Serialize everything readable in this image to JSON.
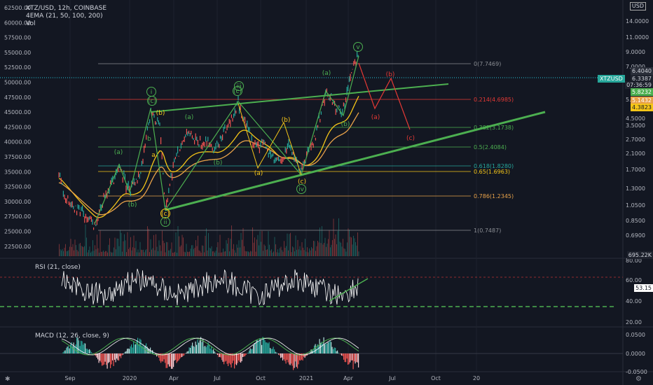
{
  "header": {
    "symbol_line": "XTZ/USD, 12h, COINBASE",
    "ema_line": "4EMA (21, 50, 100, 200)",
    "vol_label": "Vol"
  },
  "price_axis": {
    "left_ticks": [
      "62500.00",
      "60000.00",
      "57500.00",
      "55000.00",
      "52500.00",
      "50000.00",
      "47500.00",
      "45000.00",
      "42500.00",
      "40000.00",
      "37500.00",
      "35000.00",
      "32500.00",
      "30000.00",
      "27500.00",
      "25000.00",
      "22500.00"
    ],
    "right_ticks": [
      "14.0000",
      "11.0000",
      "9.0000",
      "7.0000",
      "5.5000",
      "4.5000",
      "3.5000",
      "2.7000",
      "2.1000",
      "1.7000",
      "1.3000",
      "1.0500",
      "0.8500",
      "0.6900"
    ],
    "usd_label": "USD"
  },
  "price_tags": [
    {
      "text": "6.4040",
      "color": "#2a2e39",
      "text_color": "#d1d4dc"
    },
    {
      "text": "6.3387",
      "color": "#1e222d",
      "text_color": "#d1d4dc"
    },
    {
      "text": "07:36:59",
      "color": "#1e222d",
      "text_color": "#d1d4dc"
    },
    {
      "text": "5.8232",
      "color": "#4caf50",
      "text_color": "#ffffff"
    },
    {
      "text": "5.1432",
      "color": "#e8a24a",
      "text_color": "#ffffff"
    },
    {
      "text": "4.3823",
      "color": "#f5c518",
      "text_color": "#131722"
    }
  ],
  "xtzusd_tag": "XTZUSD",
  "volume_tag": "695.22K",
  "fib_levels": [
    {
      "label": "0(7.7469)",
      "color": "#8a8d93"
    },
    {
      "label": "0.214(4.6985)",
      "color": "#e53935"
    },
    {
      "label": "0.382(3.1738)",
      "color": "#4caf50"
    },
    {
      "label": "0.5(2.4084)",
      "color": "#4caf50"
    },
    {
      "label": "0.618(1.8280)",
      "color": "#26a69a"
    },
    {
      "label": "0.65(1.6963)",
      "color": "#f5c518"
    },
    {
      "label": "0.786(1.2345)",
      "color": "#e8a24a"
    },
    {
      "label": "1(0.7487)",
      "color": "#8a8d93"
    }
  ],
  "wave_labels": [
    {
      "text": "i",
      "circle": true,
      "color": "#4caf50"
    },
    {
      "text": "(c)",
      "circle": true,
      "color": "#4caf50"
    },
    {
      "text": "(b)",
      "circle": false,
      "color": "#f5c518"
    },
    {
      "text": "(a)",
      "circle": false,
      "color": "#4caf50"
    },
    {
      "text": "(a)",
      "circle": false,
      "color": "#4caf50"
    },
    {
      "text": "(b)",
      "circle": false,
      "color": "#4caf50"
    },
    {
      "text": "(b)",
      "circle": false,
      "color": "#4caf50"
    },
    {
      "text": "b",
      "circle": false,
      "color": "#4caf50"
    },
    {
      "text": "a",
      "circle": false,
      "color": "#f5c518"
    },
    {
      "text": "iii",
      "circle": true,
      "color": "#4caf50"
    },
    {
      "text": "(c)",
      "circle": true,
      "color": "#4caf50"
    },
    {
      "text": "(c)",
      "circle": true,
      "color": "#f5c518"
    },
    {
      "text": "ii",
      "circle": true,
      "color": "#4caf50"
    },
    {
      "text": "(a)",
      "circle": false,
      "color": "#f5c518"
    },
    {
      "text": "(b)",
      "circle": false,
      "color": "#f5c518"
    },
    {
      "text": "(c)",
      "circle": false,
      "color": "#f5c518"
    },
    {
      "text": "iv",
      "circle": true,
      "color": "#4caf50"
    },
    {
      "text": "(a)",
      "circle": false,
      "color": "#4caf50"
    },
    {
      "text": "(b)",
      "circle": false,
      "color": "#4caf50"
    },
    {
      "text": "v",
      "circle": true,
      "color": "#4caf50"
    },
    {
      "text": "(b)",
      "circle": false,
      "color": "#e53935"
    },
    {
      "text": "(a)",
      "circle": false,
      "color": "#e53935"
    },
    {
      "text": "(c)",
      "circle": false,
      "color": "#e53935"
    }
  ],
  "rsi": {
    "label": "RSI (21, close)",
    "ticks": [
      "80.00",
      "60.00",
      "40.00",
      "20.00"
    ],
    "value_tag": "53.15"
  },
  "macd": {
    "label": "MACD (12, 26, close, 9)",
    "ticks": [
      "0.0500",
      "0.0000",
      "-0.0500"
    ]
  },
  "time_axis": {
    "ticks": [
      "Sep",
      "2020",
      "Apr",
      "Jul",
      "Oct",
      "2021",
      "Apr",
      "Jul",
      "Oct",
      "20"
    ]
  },
  "colors": {
    "background": "#131722",
    "green": "#4caf50",
    "red": "#e53935",
    "yellow": "#f5c518",
    "orange": "#e8a24a",
    "blue_dotted": "#26c6da"
  },
  "icons": {
    "settings": "gear-icon",
    "logo": "tradingview-logo-icon"
  }
}
